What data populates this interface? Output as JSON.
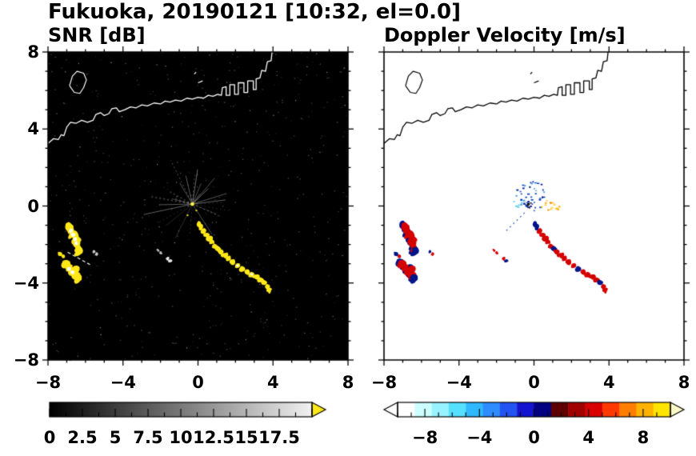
{
  "title": "Fukuoka, 20190121 [10:32, el=0.0]",
  "panels": [
    {
      "id": "snr",
      "title": "SNR [dB]",
      "bg": "#000000",
      "coast_color": "#ffffff",
      "echo_color": "#ffe818",
      "xtick_labels": [
        "−8",
        "−4",
        "0",
        "4",
        "8"
      ],
      "ytick_labels": [
        "8",
        "4",
        "0",
        "−4",
        "−8"
      ]
    },
    {
      "id": "doppler",
      "title": "Doppler Velocity [m/s]",
      "bg": "#ffffff",
      "coast_color": "#000000",
      "neg_color": "#001489",
      "pos_color": "#d40000",
      "xtick_labels": [
        "−8",
        "−4",
        "0",
        "4",
        "8"
      ],
      "ytick_labels": []
    }
  ],
  "colorbars": [
    {
      "id": "snr",
      "range": [
        0,
        20
      ],
      "gradient": [
        "#000000",
        "#f2f2f2"
      ],
      "overflow_arrow_color": "#ffe818",
      "tick_step": 1.25,
      "major_step": 2.5,
      "labels": [
        "0",
        "2.5",
        "5",
        "7.5",
        "10",
        "12.5",
        "15",
        "17.5"
      ],
      "label_values": [
        0,
        2.5,
        5,
        7.5,
        10,
        12.5,
        15,
        17.5
      ]
    },
    {
      "id": "doppler",
      "range": [
        -10,
        10
      ],
      "segment_colors": [
        "#ffffff",
        "#ccffff",
        "#99f2ff",
        "#55e0ff",
        "#2fb8ff",
        "#2e8cff",
        "#2353f0",
        "#1414cf",
        "#000080",
        "#5e0000",
        "#a00000",
        "#d80000",
        "#ff3800",
        "#ff7d00",
        "#ffb300",
        "#ffe400"
      ],
      "arrow_left_color": "#ffffff",
      "arrow_right_color": "#fff8c8",
      "tick_step": 1,
      "major_step": 4,
      "labels": [
        "−8",
        "−4",
        "0",
        "4",
        "8"
      ],
      "label_values": [
        -8,
        -4,
        0,
        4,
        8
      ]
    }
  ],
  "chart_data": {
    "type": "heatmap",
    "title": "Fukuoka, 20190121 [10:32, el=0.0]",
    "station": "Fukuoka",
    "date": "20190121",
    "time": "10:32",
    "elevation_deg": 0.0,
    "panels": [
      {
        "title": "SNR [dB]",
        "units": "dB",
        "colormap": "grayscale 0 to 20 dB, yellow overflow arrow = above 20 dB",
        "no_echo_background": "black"
      },
      {
        "title": "Doppler Velocity [m/s]",
        "units": "m/s",
        "colormap": "diverging: cyan/blue negative to dark-red/red/orange/yellow positive, range -10 to 10 m/s",
        "no_echo_background": "white"
      }
    ],
    "axes": {
      "xlim": [
        -8,
        8
      ],
      "ylim": [
        -8,
        8
      ],
      "xticks": [
        -8,
        -4,
        0,
        4,
        8
      ],
      "yticks": [
        -8,
        -4,
        0,
        4,
        8
      ],
      "minor_tick_step": 1,
      "grid": false
    },
    "radar_center_xy": [
      -0.3,
      0.1
    ],
    "spokes": {
      "center": [
        -0.3,
        0.1
      ],
      "count": 30,
      "min_len": 0.5,
      "max_len": 2.7,
      "color": "#c8c8c8",
      "center_dot_color": "#ffe818"
    },
    "noise": {
      "count": 520,
      "seed": 7
    },
    "coastline": [
      [
        -8.0,
        3.25
      ],
      [
        -7.7,
        3.5
      ],
      [
        -7.45,
        3.45
      ],
      [
        -7.3,
        3.7
      ],
      [
        -7.15,
        3.65
      ],
      [
        -7.0,
        4.1
      ],
      [
        -6.8,
        4.35
      ],
      [
        -6.5,
        4.3
      ],
      [
        -6.2,
        4.45
      ],
      [
        -5.9,
        4.35
      ],
      [
        -5.6,
        4.45
      ],
      [
        -5.45,
        4.75
      ],
      [
        -5.2,
        4.85
      ],
      [
        -5.0,
        4.7
      ],
      [
        -4.75,
        4.8
      ],
      [
        -4.6,
        5.05
      ],
      [
        -4.35,
        5.1
      ],
      [
        -4.2,
        4.9
      ],
      [
        -3.9,
        5.0
      ],
      [
        -3.6,
        5.15
      ],
      [
        -3.3,
        5.1
      ],
      [
        -3.0,
        5.25
      ],
      [
        -2.7,
        5.2
      ],
      [
        -2.35,
        5.35
      ],
      [
        -2.0,
        5.3
      ],
      [
        -1.75,
        5.45
      ],
      [
        -1.5,
        5.4
      ],
      [
        -1.2,
        5.5
      ],
      [
        -0.9,
        5.45
      ],
      [
        -0.6,
        5.6
      ],
      [
        -0.3,
        5.55
      ],
      [
        0.0,
        5.65
      ],
      [
        0.3,
        5.6
      ],
      [
        0.55,
        5.75
      ],
      [
        0.8,
        5.7
      ],
      [
        1.05,
        5.8
      ],
      [
        1.25,
        5.75
      ],
      [
        1.3,
        6.15
      ],
      [
        1.5,
        6.2
      ],
      [
        1.5,
        5.75
      ],
      [
        1.7,
        5.75
      ],
      [
        1.7,
        6.3
      ],
      [
        1.95,
        6.3
      ],
      [
        1.95,
        5.8
      ],
      [
        2.15,
        5.8
      ],
      [
        2.15,
        6.4
      ],
      [
        2.45,
        6.4
      ],
      [
        2.45,
        5.9
      ],
      [
        2.65,
        5.9
      ],
      [
        2.65,
        6.5
      ],
      [
        2.95,
        6.5
      ],
      [
        2.95,
        6.05
      ],
      [
        3.1,
        6.05
      ],
      [
        3.1,
        6.6
      ],
      [
        3.3,
        6.65
      ],
      [
        3.4,
        7.05
      ],
      [
        3.6,
        7.0
      ],
      [
        3.7,
        7.5
      ],
      [
        3.9,
        7.55
      ],
      [
        3.95,
        8.0
      ]
    ],
    "island": [
      [
        -6.85,
        6.25
      ],
      [
        -6.7,
        6.75
      ],
      [
        -6.45,
        7.0
      ],
      [
        -6.1,
        6.9
      ],
      [
        -5.95,
        6.55
      ],
      [
        -6.1,
        6.15
      ],
      [
        -6.3,
        5.85
      ],
      [
        -6.6,
        5.9
      ],
      [
        -6.85,
        6.25
      ]
    ],
    "islets": [
      [
        [
          0.0,
          6.4
        ],
        [
          0.25,
          6.5
        ]
      ],
      [
        [
          -0.2,
          6.85
        ],
        [
          -0.1,
          6.95
        ]
      ]
    ],
    "echo_clusters": [
      {
        "name": "west-arc",
        "r": 0.22,
        "points": [
          [
            -6.9,
            -1.05
          ],
          [
            -6.78,
            -1.28
          ],
          [
            -6.65,
            -1.5
          ],
          [
            -6.55,
            -1.72
          ],
          [
            -6.48,
            -1.95
          ],
          [
            -6.4,
            -2.15
          ],
          [
            -6.33,
            -2.33
          ]
        ],
        "white_core": [
          1,
          2,
          3,
          4
        ],
        "navy_edge": true,
        "dop": [
          "r",
          "r",
          "r",
          "r",
          "r",
          "r",
          "n"
        ],
        "snr_db": ">20 (saturated yellow)",
        "doppler_ms": "+2 to +4 with -2 to -4 edge"
      },
      {
        "name": "west-dashes",
        "r": 0.1,
        "points": [
          [
            -7.35,
            -2.48
          ],
          [
            -7.18,
            -2.62
          ]
        ],
        "dop": [
          "n",
          "r"
        ],
        "snr_db": ">20",
        "doppler_ms": "mixed +/-"
      },
      {
        "name": "west-hook",
        "r": 0.2,
        "points": [
          [
            -7.0,
            -3.05
          ],
          [
            -6.87,
            -3.25
          ],
          [
            -6.72,
            -3.45
          ],
          [
            -6.55,
            -3.62
          ],
          [
            -6.4,
            -3.75
          ],
          [
            -6.52,
            -3.28
          ]
        ],
        "white_core": [
          1,
          2
        ],
        "navy_edge": true,
        "dop": [
          "r",
          "r",
          "r",
          "r",
          "n",
          "r"
        ],
        "snr_db": ">20",
        "doppler_ms": "+2 to +4"
      },
      {
        "name": "west-outlier",
        "r": 0.08,
        "snr_color": "#cccccc",
        "points": [
          [
            -5.55,
            -2.35
          ],
          [
            -5.42,
            -2.5
          ]
        ],
        "dop": [
          "n",
          "r"
        ],
        "snr_db": "8-12",
        "doppler_ms": "mixed"
      },
      {
        "name": "central-chain",
        "r": 0.14,
        "points": [
          [
            0.0,
            -0.95
          ],
          [
            0.14,
            -1.12
          ],
          [
            0.3,
            -1.3
          ],
          [
            0.45,
            -1.5
          ],
          [
            0.58,
            -1.68
          ],
          [
            0.72,
            -1.88
          ],
          [
            0.9,
            -2.05
          ],
          [
            1.05,
            -2.22
          ],
          [
            1.22,
            -2.38
          ],
          [
            1.42,
            -2.55
          ],
          [
            1.62,
            -2.72
          ],
          [
            1.85,
            -2.9
          ],
          [
            2.1,
            -3.1
          ],
          [
            2.35,
            -3.28
          ],
          [
            2.6,
            -3.42
          ],
          [
            2.85,
            -3.55
          ],
          [
            3.1,
            -3.68
          ],
          [
            3.32,
            -3.82
          ],
          [
            3.52,
            -4.0
          ],
          [
            3.7,
            -4.2
          ],
          [
            3.82,
            -4.38
          ]
        ],
        "white_core": [
          12,
          15
        ],
        "dop": [
          "n",
          "n",
          "r",
          "r",
          "r",
          "r",
          "r",
          "n",
          "r",
          "r",
          "r",
          "r",
          "r",
          "n",
          "r",
          "r",
          "r",
          "r",
          "n",
          "r",
          "r"
        ],
        "snr_db": ">20",
        "doppler_ms": "mostly +2 to +4, patches -2 to -4"
      },
      {
        "name": "small-dash",
        "r": 0.08,
        "snr_color": "#e8e8e8",
        "points": [
          [
            -1.62,
            -2.72
          ],
          [
            -1.5,
            -2.86
          ]
        ],
        "dop": [
          "r",
          "n"
        ],
        "snr_db": "10-15",
        "doppler_ms": "mixed"
      },
      {
        "name": "mid-dashes",
        "r": 0.07,
        "snr_color": "#bbbbbb",
        "points": [
          [
            -2.12,
            -2.3
          ],
          [
            -1.98,
            -2.44
          ]
        ],
        "dop": [
          "r",
          "r"
        ],
        "snr_db": "8-12",
        "doppler_ms": "+2"
      }
    ],
    "streaks": [
      {
        "panel": "snr",
        "from": [
          -6.95,
          -2.4
        ],
        "to": [
          -5.75,
          -3.05
        ],
        "color": "#ffffff",
        "dash": [
          4,
          3
        ],
        "width": 1.2
      },
      {
        "panel": "doppler",
        "from": [
          -0.5,
          -0.35
        ],
        "to": [
          -1.55,
          -1.35
        ],
        "color": "#3355bb",
        "dash": [
          2,
          4
        ],
        "width": 1.2
      }
    ],
    "doppler_speckle": {
      "core": {
        "center": [
          -0.3,
          0.1
        ],
        "rx": 0.18,
        "ry": 0.18,
        "count": 10,
        "colors": [
          "#001489",
          "#000000"
        ]
      },
      "blue": {
        "center": [
          -0.2,
          0.55
        ],
        "rx": 0.85,
        "ry": 0.8,
        "count": 42,
        "colors": [
          "#001b8f",
          "#0033bb",
          "#2b5fd0",
          "#5aa6e0"
        ]
      },
      "yellow": {
        "center": [
          0.8,
          0.05
        ],
        "rx": 0.75,
        "ry": 0.3,
        "count": 16,
        "colors": [
          "#ffb400",
          "#ffd24d",
          "#ff8a00"
        ]
      },
      "cyan": {
        "center": [
          -0.95,
          0.15
        ],
        "rx": 0.3,
        "ry": 0.2,
        "count": 5,
        "colors": [
          "#55ccee"
        ]
      }
    }
  }
}
